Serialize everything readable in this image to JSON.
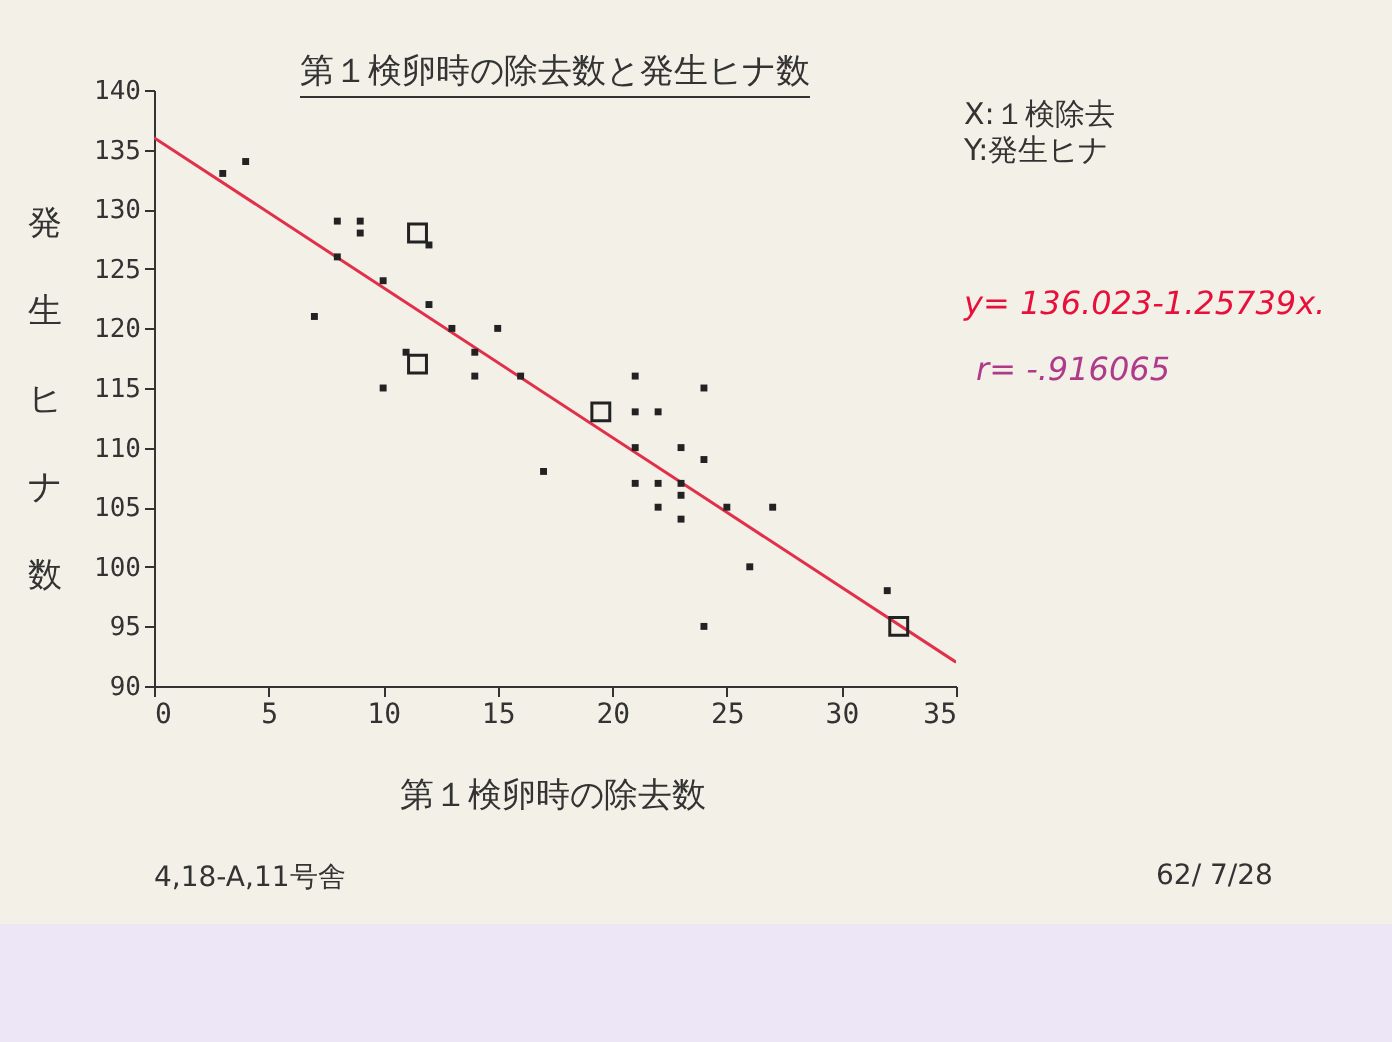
{
  "chart_data": {
    "type": "scatter",
    "title": "第１検卵時の除去数と発生ヒナ数",
    "xlabel": "第１検卵時の除去数",
    "ylabel": "発生ヒナ数",
    "xlim": [
      0,
      35
    ],
    "xticks": [
      0,
      5,
      10,
      15,
      20,
      25,
      30,
      35
    ],
    "ylim": [
      90,
      140
    ],
    "yticks": [
      90,
      95,
      100,
      105,
      110,
      115,
      120,
      125,
      130,
      135,
      140
    ],
    "grid": false,
    "marker": "square",
    "series": [
      {
        "color": "#222222",
        "x": [
          3,
          4,
          7,
          8,
          8,
          9,
          9,
          10,
          10,
          12,
          11,
          12,
          13,
          15,
          14,
          14,
          16,
          17,
          21,
          21,
          22,
          21,
          23,
          24,
          24,
          21,
          22,
          23,
          23,
          22,
          25,
          27,
          23,
          26,
          24,
          32
        ],
        "values": [
          133,
          134,
          121,
          129,
          126,
          129,
          128,
          124,
          115,
          127,
          118,
          122,
          120,
          120,
          118,
          116,
          116,
          108,
          116,
          113,
          113,
          110,
          110,
          115,
          109,
          107,
          107,
          107,
          106,
          105,
          105,
          105,
          104,
          100,
          95,
          98
        ]
      },
      {
        "color": "#222222",
        "x": [
          11.5,
          11.5,
          19.5,
          32.5
        ],
        "values": [
          128,
          117,
          113,
          95
        ]
      },
      {
        "type": "line",
        "marker": "none",
        "color": "#e0304a",
        "x": [
          0,
          35
        ],
        "values": [
          136.0,
          92.0
        ]
      }
    ],
    "annotations": [
      "X:１検除去",
      "Y:発生ヒナ",
      "y= 136.023-1.25739x.",
      "r= -.916065",
      "4,18-A,11号舎",
      "62/ 7/28"
    ]
  }
}
